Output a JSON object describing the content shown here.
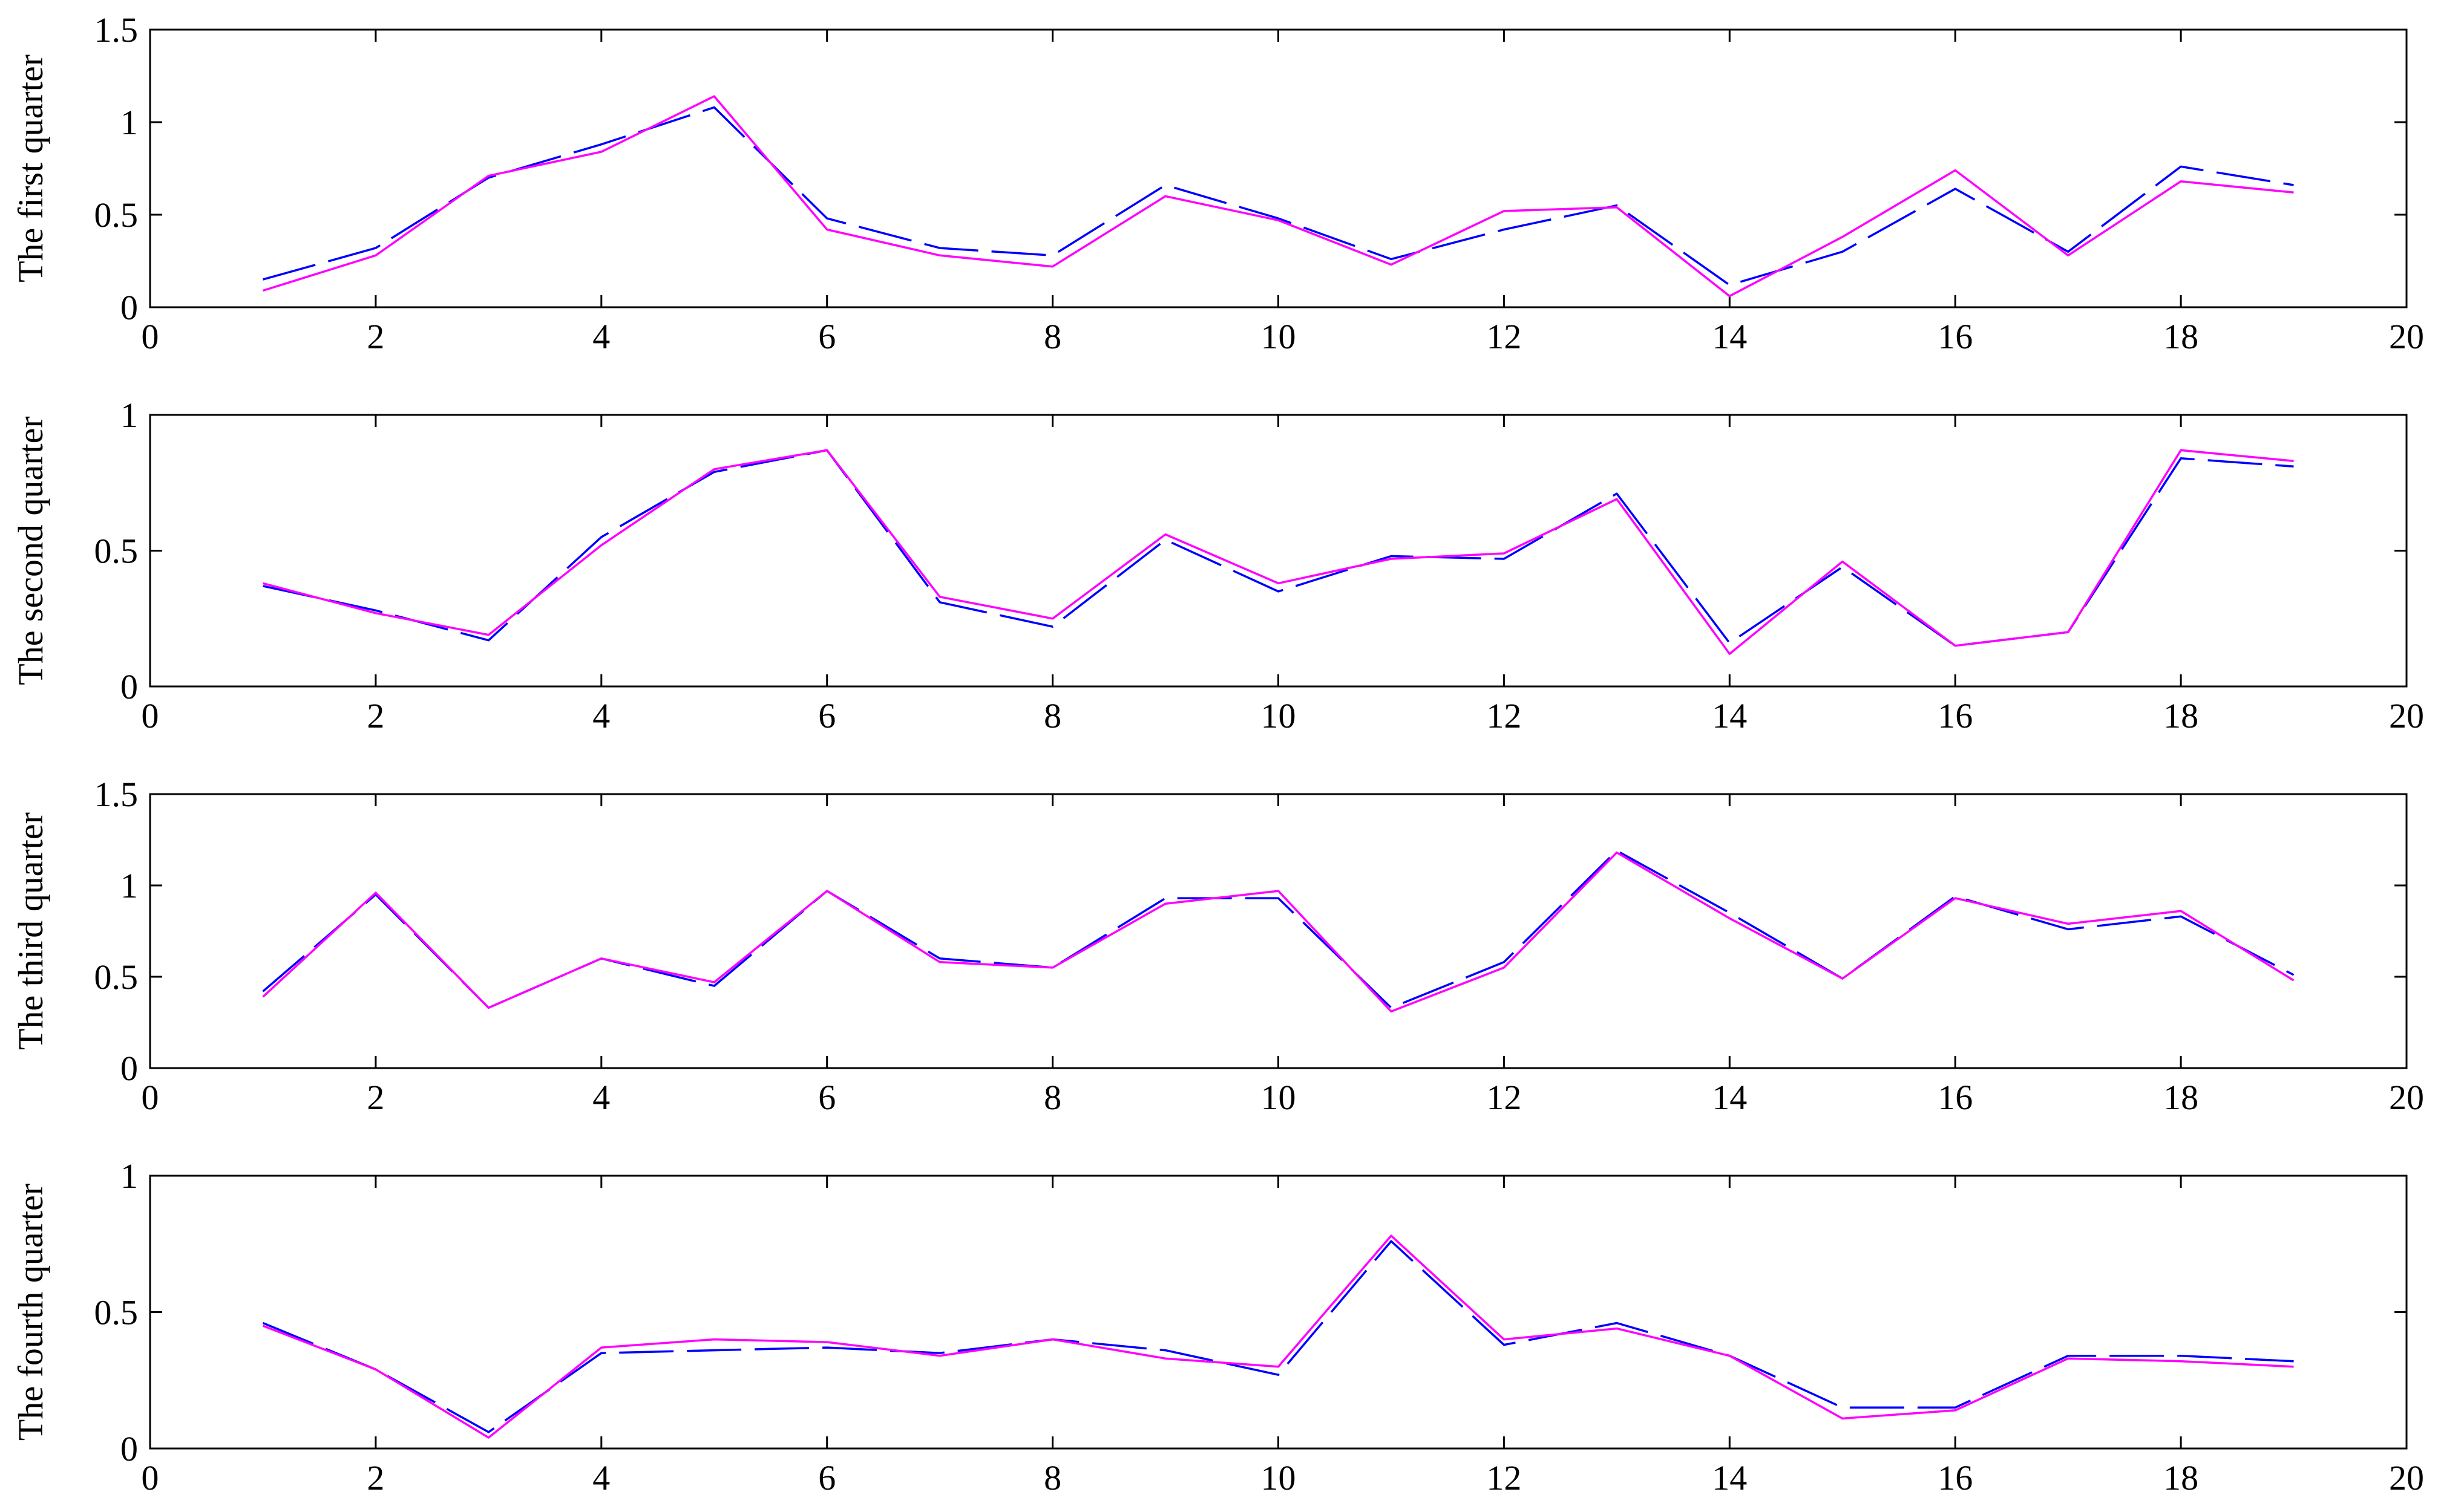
{
  "chart_data": [
    {
      "type": "line",
      "ylabel": "The first quarter",
      "xlim": [
        0,
        20
      ],
      "ylim": [
        0,
        1.5
      ],
      "xticks": [
        "0",
        "2",
        "4",
        "6",
        "8",
        "10",
        "12",
        "14",
        "16",
        "18",
        "20"
      ],
      "yticks": [
        "0",
        "0.5",
        "1",
        "1.5"
      ],
      "x": [
        1,
        2,
        3,
        4,
        5,
        6,
        7,
        8,
        9,
        10,
        11,
        12,
        13,
        14,
        15,
        16,
        17,
        18,
        19
      ],
      "series": [
        {
          "color": "#0000ff",
          "style": "dashed",
          "values": [
            0.15,
            0.32,
            0.7,
            0.88,
            1.08,
            0.48,
            0.32,
            0.28,
            0.66,
            0.48,
            0.26,
            0.42,
            0.55,
            0.12,
            0.3,
            0.64,
            0.3,
            0.76,
            0.66
          ]
        },
        {
          "color": "#ff00ff",
          "style": "solid",
          "values": [
            0.09,
            0.28,
            0.71,
            0.84,
            1.14,
            0.42,
            0.28,
            0.22,
            0.6,
            0.47,
            0.23,
            0.52,
            0.54,
            0.06,
            0.38,
            0.74,
            0.28,
            0.68,
            0.62
          ]
        }
      ]
    },
    {
      "type": "line",
      "ylabel": "The second quarter",
      "xlim": [
        0,
        20
      ],
      "ylim": [
        0,
        1
      ],
      "xticks": [
        "0",
        "2",
        "4",
        "6",
        "8",
        "10",
        "12",
        "14",
        "16",
        "18",
        "20"
      ],
      "yticks": [
        "0",
        "0.5",
        "1"
      ],
      "x": [
        1,
        2,
        3,
        4,
        5,
        6,
        7,
        8,
        9,
        10,
        11,
        12,
        13,
        14,
        15,
        16,
        17,
        18,
        19
      ],
      "series": [
        {
          "color": "#0000ff",
          "style": "dashed",
          "values": [
            0.37,
            0.28,
            0.17,
            0.55,
            0.79,
            0.87,
            0.31,
            0.22,
            0.54,
            0.35,
            0.48,
            0.47,
            0.71,
            0.16,
            0.44,
            0.15,
            0.2,
            0.84,
            0.81
          ]
        },
        {
          "color": "#ff00ff",
          "style": "solid",
          "values": [
            0.38,
            0.27,
            0.19,
            0.52,
            0.8,
            0.87,
            0.33,
            0.25,
            0.56,
            0.38,
            0.47,
            0.49,
            0.69,
            0.12,
            0.46,
            0.15,
            0.2,
            0.87,
            0.83
          ]
        }
      ]
    },
    {
      "type": "line",
      "ylabel": "The third quarter",
      "xlim": [
        0,
        20
      ],
      "ylim": [
        0,
        1.5
      ],
      "xticks": [
        "0",
        "2",
        "4",
        "6",
        "8",
        "10",
        "12",
        "14",
        "16",
        "18",
        "20"
      ],
      "yticks": [
        "0",
        "0.5",
        "1",
        "1.5"
      ],
      "x": [
        1,
        2,
        3,
        4,
        5,
        6,
        7,
        8,
        9,
        10,
        11,
        12,
        13,
        14,
        15,
        16,
        17,
        18,
        19
      ],
      "series": [
        {
          "color": "#0000ff",
          "style": "dashed",
          "values": [
            0.42,
            0.95,
            0.33,
            0.6,
            0.45,
            0.97,
            0.6,
            0.55,
            0.93,
            0.93,
            0.33,
            0.58,
            1.19,
            0.85,
            0.49,
            0.94,
            0.76,
            0.83,
            0.51
          ]
        },
        {
          "color": "#ff00ff",
          "style": "solid",
          "values": [
            0.39,
            0.96,
            0.33,
            0.6,
            0.47,
            0.97,
            0.58,
            0.55,
            0.9,
            0.97,
            0.31,
            0.55,
            1.18,
            0.82,
            0.49,
            0.93,
            0.79,
            0.86,
            0.48
          ]
        }
      ]
    },
    {
      "type": "line",
      "ylabel": "The fourth quarter",
      "xlim": [
        0,
        20
      ],
      "ylim": [
        0,
        1
      ],
      "xticks": [
        "0",
        "2",
        "4",
        "6",
        "8",
        "10",
        "12",
        "14",
        "16",
        "18",
        "20"
      ],
      "yticks": [
        "0",
        "0.5",
        "1"
      ],
      "x": [
        1,
        2,
        3,
        4,
        5,
        6,
        7,
        8,
        9,
        10,
        11,
        12,
        13,
        14,
        15,
        16,
        17,
        18,
        19
      ],
      "series": [
        {
          "color": "#0000ff",
          "style": "dashed",
          "values": [
            0.46,
            0.29,
            0.06,
            0.35,
            0.36,
            0.37,
            0.35,
            0.4,
            0.36,
            0.27,
            0.76,
            0.38,
            0.46,
            0.34,
            0.15,
            0.15,
            0.34,
            0.34,
            0.32
          ]
        },
        {
          "color": "#ff00ff",
          "style": "solid",
          "values": [
            0.45,
            0.29,
            0.04,
            0.37,
            0.4,
            0.39,
            0.34,
            0.4,
            0.33,
            0.3,
            0.78,
            0.4,
            0.44,
            0.34,
            0.11,
            0.14,
            0.33,
            0.32,
            0.3
          ]
        }
      ]
    }
  ]
}
